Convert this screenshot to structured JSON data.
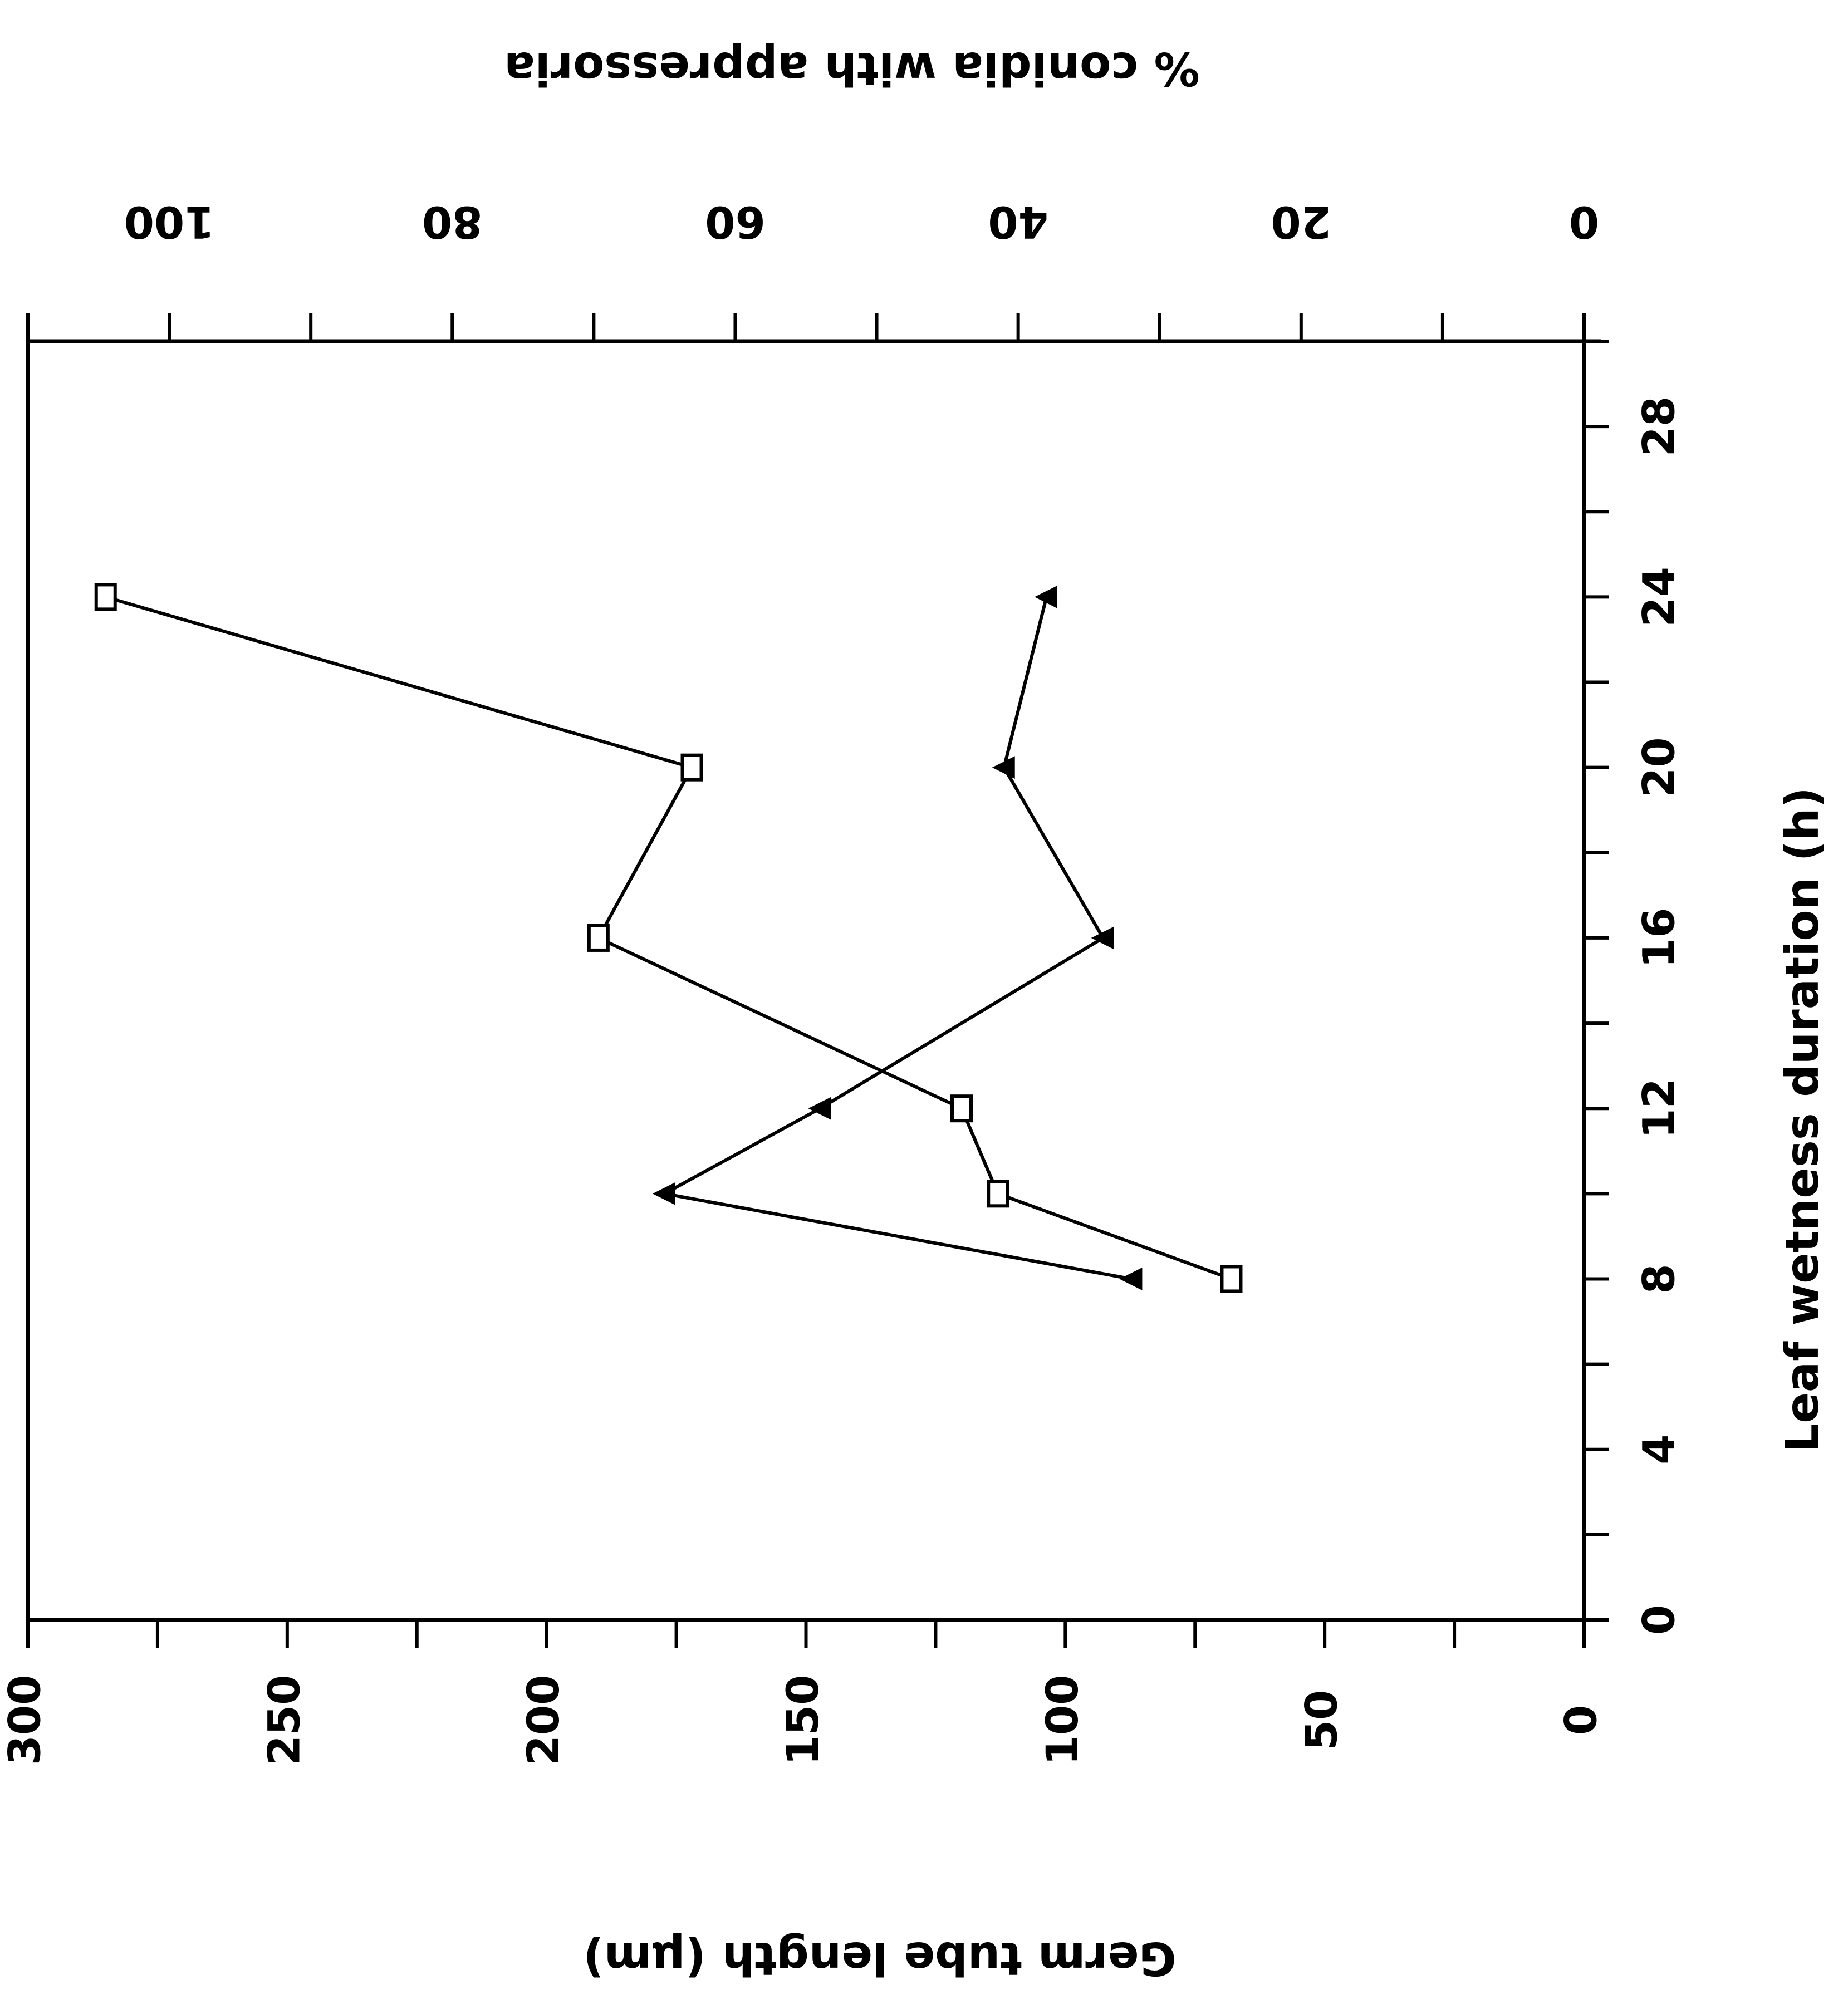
{
  "chart_data": {
    "type": "line",
    "x_axis": {
      "label": "Leaf wetness duration (h)",
      "ticks": [
        "0",
        "4",
        "8",
        "12",
        "16",
        "20",
        "24",
        "28"
      ],
      "range": [
        0,
        30
      ]
    },
    "y_axis_left": {
      "label": "Germ tube length (μm)",
      "ticks": [
        "0",
        "50",
        "100",
        "150",
        "200",
        "250",
        "300"
      ],
      "range": [
        0,
        300
      ]
    },
    "y_axis_right": {
      "label": "% conidia with appressoria",
      "ticks": [
        "0",
        "20",
        "40",
        "60",
        "80",
        "100"
      ],
      "range": [
        0,
        110
      ]
    },
    "series": [
      {
        "marker": "square",
        "axis": "left",
        "x": [
          8,
          10,
          12,
          16,
          20,
          24
        ],
        "y": [
          68,
          113,
          120,
          190,
          172,
          285
        ]
      },
      {
        "marker": "triangle",
        "axis": "right",
        "x": [
          8,
          10,
          12,
          16,
          20,
          24
        ],
        "y": [
          32,
          65,
          54,
          34,
          41,
          38
        ]
      }
    ],
    "grid": false,
    "orientation": "rotated 90° (x axis vertical)"
  }
}
